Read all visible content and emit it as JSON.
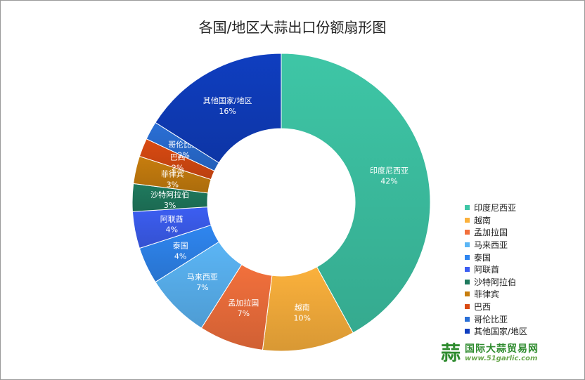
{
  "chart_data": {
    "type": "pie",
    "title": "各国/地区大蒜出口份额扇形图",
    "donut": true,
    "legend_position": "right",
    "categories": [
      "印度尼西亚",
      "越南",
      "孟加拉国",
      "马来西亚",
      "泰国",
      "阿联酋",
      "沙特阿拉伯",
      "菲律宾",
      "巴西",
      "哥伦比亚",
      "其他国家/地区"
    ],
    "values": [
      42,
      10,
      7,
      7,
      4,
      4,
      3,
      3,
      2,
      2,
      16
    ],
    "labels": [
      "42%",
      "10%",
      "7%",
      "7%",
      "4%",
      "4%",
      "3%",
      "3%",
      "2%",
      "2%",
      "16%"
    ],
    "colors": [
      "#3ec6a6",
      "#fbb13c",
      "#f2703c",
      "#5bb5f5",
      "#2f86f0",
      "#3c5ef2",
      "#1f7a5e",
      "#c77d0e",
      "#d94a12",
      "#2a6fd6",
      "#0f3ec0"
    ]
  },
  "watermark": {
    "icon": "garlic-logo-icon",
    "name": "国际大蒜贸易网",
    "url": "www.51garlic.com"
  }
}
